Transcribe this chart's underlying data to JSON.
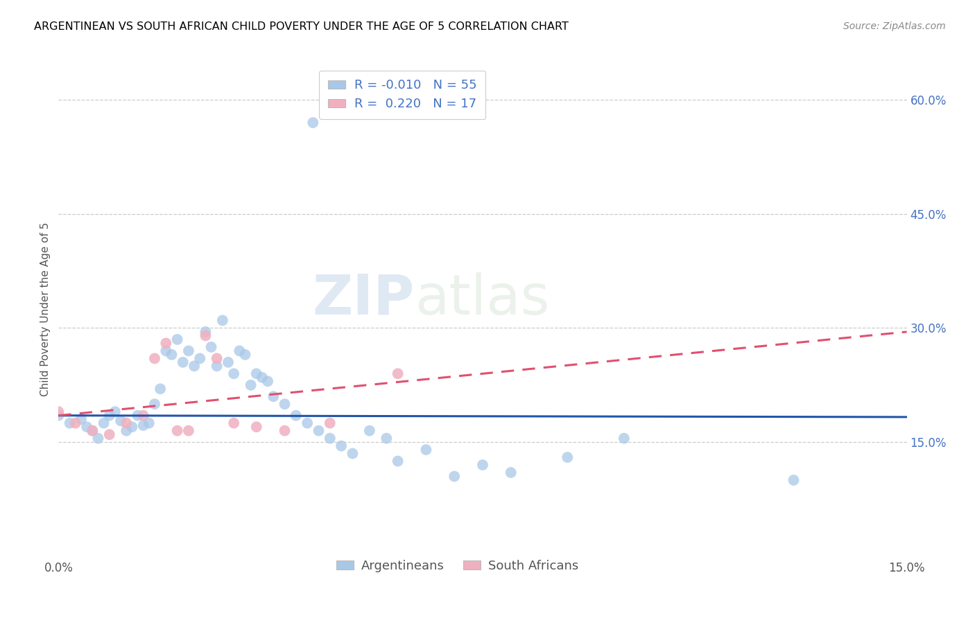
{
  "title": "ARGENTINEAN VS SOUTH AFRICAN CHILD POVERTY UNDER THE AGE OF 5 CORRELATION CHART",
  "source": "Source: ZipAtlas.com",
  "ylabel": "Child Poverty Under the Age of 5",
  "xlim": [
    0.0,
    0.15
  ],
  "ylim": [
    0.0,
    0.65
  ],
  "legend_r_blue": "-0.010",
  "legend_n_blue": "55",
  "legend_r_pink": "0.220",
  "legend_n_pink": "17",
  "blue_color": "#A8C8E8",
  "pink_color": "#F0B0C0",
  "line_blue_color": "#2255AA",
  "line_pink_color": "#E05070",
  "watermark": "ZIPatlas",
  "arg_x": [
    0.0,
    0.002,
    0.004,
    0.005,
    0.006,
    0.007,
    0.008,
    0.009,
    0.01,
    0.011,
    0.012,
    0.013,
    0.014,
    0.015,
    0.016,
    0.017,
    0.018,
    0.019,
    0.02,
    0.021,
    0.022,
    0.023,
    0.024,
    0.025,
    0.026,
    0.027,
    0.028,
    0.029,
    0.03,
    0.031,
    0.032,
    0.033,
    0.034,
    0.035,
    0.036,
    0.037,
    0.038,
    0.04,
    0.042,
    0.044,
    0.046,
    0.048,
    0.05,
    0.052,
    0.055,
    0.058,
    0.06,
    0.065,
    0.07,
    0.075,
    0.08,
    0.09,
    0.1,
    0.13,
    0.045
  ],
  "arg_y": [
    0.185,
    0.175,
    0.18,
    0.17,
    0.165,
    0.155,
    0.175,
    0.185,
    0.19,
    0.178,
    0.165,
    0.17,
    0.185,
    0.172,
    0.175,
    0.2,
    0.22,
    0.27,
    0.265,
    0.285,
    0.255,
    0.27,
    0.25,
    0.26,
    0.295,
    0.275,
    0.25,
    0.31,
    0.255,
    0.24,
    0.27,
    0.265,
    0.225,
    0.24,
    0.235,
    0.23,
    0.21,
    0.2,
    0.185,
    0.175,
    0.165,
    0.155,
    0.145,
    0.135,
    0.165,
    0.155,
    0.125,
    0.14,
    0.105,
    0.12,
    0.11,
    0.13,
    0.155,
    0.1,
    0.57
  ],
  "sa_x": [
    0.003,
    0.006,
    0.009,
    0.012,
    0.015,
    0.017,
    0.019,
    0.021,
    0.023,
    0.026,
    0.028,
    0.031,
    0.035,
    0.04,
    0.048,
    0.06,
    0.0
  ],
  "sa_y": [
    0.175,
    0.165,
    0.16,
    0.175,
    0.185,
    0.26,
    0.28,
    0.165,
    0.165,
    0.29,
    0.26,
    0.175,
    0.17,
    0.165,
    0.175,
    0.24,
    0.19
  ]
}
